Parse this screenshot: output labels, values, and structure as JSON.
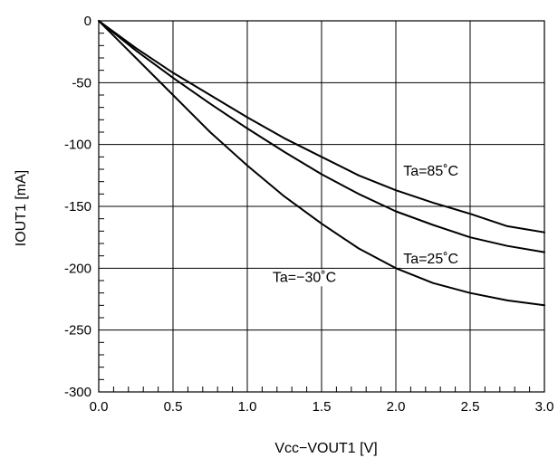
{
  "chart_data": {
    "type": "line",
    "title": "",
    "xlabel": "Vcc−VOUT1 [V]",
    "ylabel": "IOUT1 [mA]",
    "xlim": [
      0,
      3.0
    ],
    "ylim": [
      -300,
      0
    ],
    "grid": true,
    "x_ticks": [
      "0.0",
      "0.5",
      "1.0",
      "1.5",
      "2.0",
      "2.5",
      "3.0"
    ],
    "y_ticks": [
      "0",
      "-50",
      "-100",
      "-150",
      "-200",
      "-250",
      "-300"
    ],
    "series": [
      {
        "name": "Ta=85˚C",
        "x": [
          0,
          0.25,
          0.5,
          0.75,
          1.0,
          1.25,
          1.5,
          1.75,
          2.0,
          2.25,
          2.5,
          2.75,
          3.0
        ],
        "y": [
          0,
          -22,
          -42,
          -60,
          -78,
          -95,
          -110,
          -125,
          -137,
          -147,
          -156,
          -166,
          -171
        ]
      },
      {
        "name": "Ta=25˚C",
        "x": [
          0,
          0.25,
          0.5,
          0.75,
          1.0,
          1.25,
          1.5,
          1.75,
          2.0,
          2.25,
          2.5,
          2.75,
          3.0
        ],
        "y": [
          0,
          -24,
          -46,
          -67,
          -87,
          -106,
          -124,
          -140,
          -154,
          -165,
          -175,
          -182,
          -187
        ]
      },
      {
        "name": "Ta=−30˚C",
        "x": [
          0,
          0.25,
          0.5,
          0.75,
          1.0,
          1.25,
          1.5,
          1.75,
          2.0,
          2.25,
          2.5,
          2.75,
          3.0
        ],
        "y": [
          0,
          -30,
          -60,
          -90,
          -117,
          -142,
          -164,
          -184,
          -200,
          -212,
          -220,
          -226,
          -230
        ]
      }
    ]
  }
}
